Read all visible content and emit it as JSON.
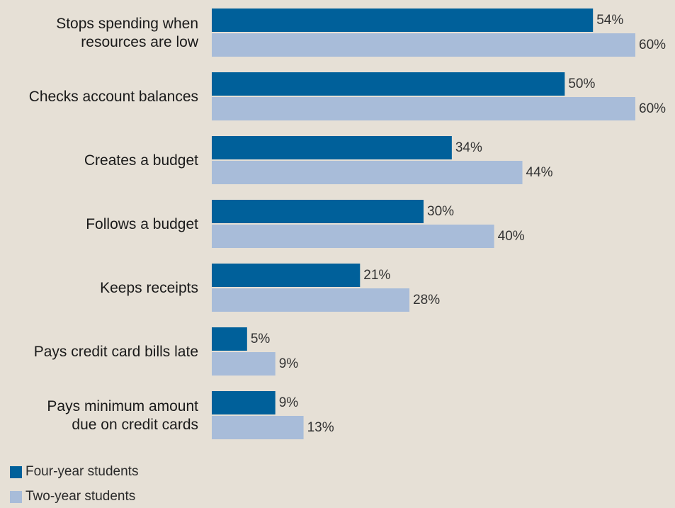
{
  "colors": {
    "background": "#e6e0d6",
    "four_year": "#00609a",
    "two_year": "#a8bcd9"
  },
  "legend": {
    "four_year": "Four-year students",
    "two_year": "Two-year students"
  },
  "chart_data": {
    "type": "bar",
    "orientation": "horizontal",
    "categories": [
      [
        "Stops spending when",
        "resources are low"
      ],
      [
        "Checks account balances"
      ],
      [
        "Creates a budget"
      ],
      [
        "Follows a budget"
      ],
      [
        "Keeps receipts"
      ],
      [
        "Pays credit card bills late"
      ],
      [
        "Pays minimum amount",
        "due on credit cards"
      ]
    ],
    "series": [
      {
        "name": "Four-year students",
        "values": [
          54,
          50,
          34,
          30,
          21,
          5,
          9
        ],
        "labels": [
          "54%",
          "50%",
          "34%",
          "30%",
          "21%",
          "5%",
          "9%"
        ]
      },
      {
        "name": "Two-year students",
        "values": [
          60,
          60,
          44,
          40,
          28,
          9,
          13
        ],
        "labels": [
          "60%",
          "60%",
          "44%",
          "40%",
          "28%",
          "9%",
          "13%"
        ]
      }
    ],
    "xlim": [
      0,
      60
    ],
    "grid": false,
    "legend_position": "bottom-left"
  }
}
